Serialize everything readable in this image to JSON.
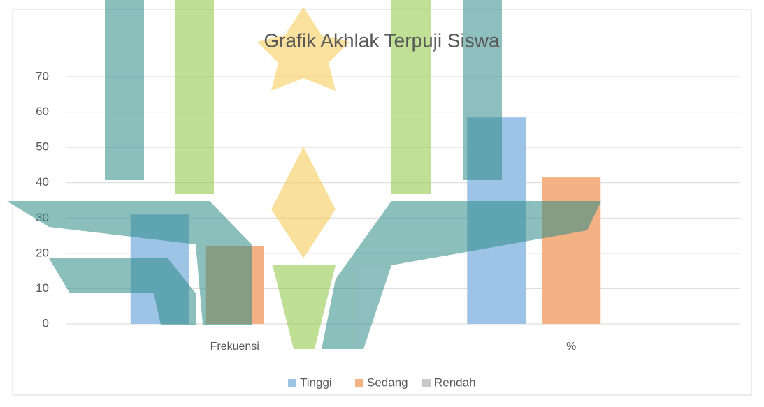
{
  "chart_data": {
    "type": "bar",
    "title": "Grafik Akhlak Terpuji Siswa",
    "categories": [
      "Frekuensi",
      "%"
    ],
    "series": [
      {
        "name": "Tinggi",
        "color": "#9dc3e6",
        "values": [
          31,
          58.5
        ]
      },
      {
        "name": "Sedang",
        "color": "#f4b183",
        "values": [
          22,
          41.5
        ]
      },
      {
        "name": "Rendah",
        "color": "#c9c9c9",
        "values": [
          0,
          0
        ]
      }
    ],
    "ylim": [
      0,
      70
    ],
    "yticks": [
      0,
      10,
      20,
      30,
      40,
      50,
      60,
      70
    ],
    "grid": true,
    "legend": "bottom"
  }
}
